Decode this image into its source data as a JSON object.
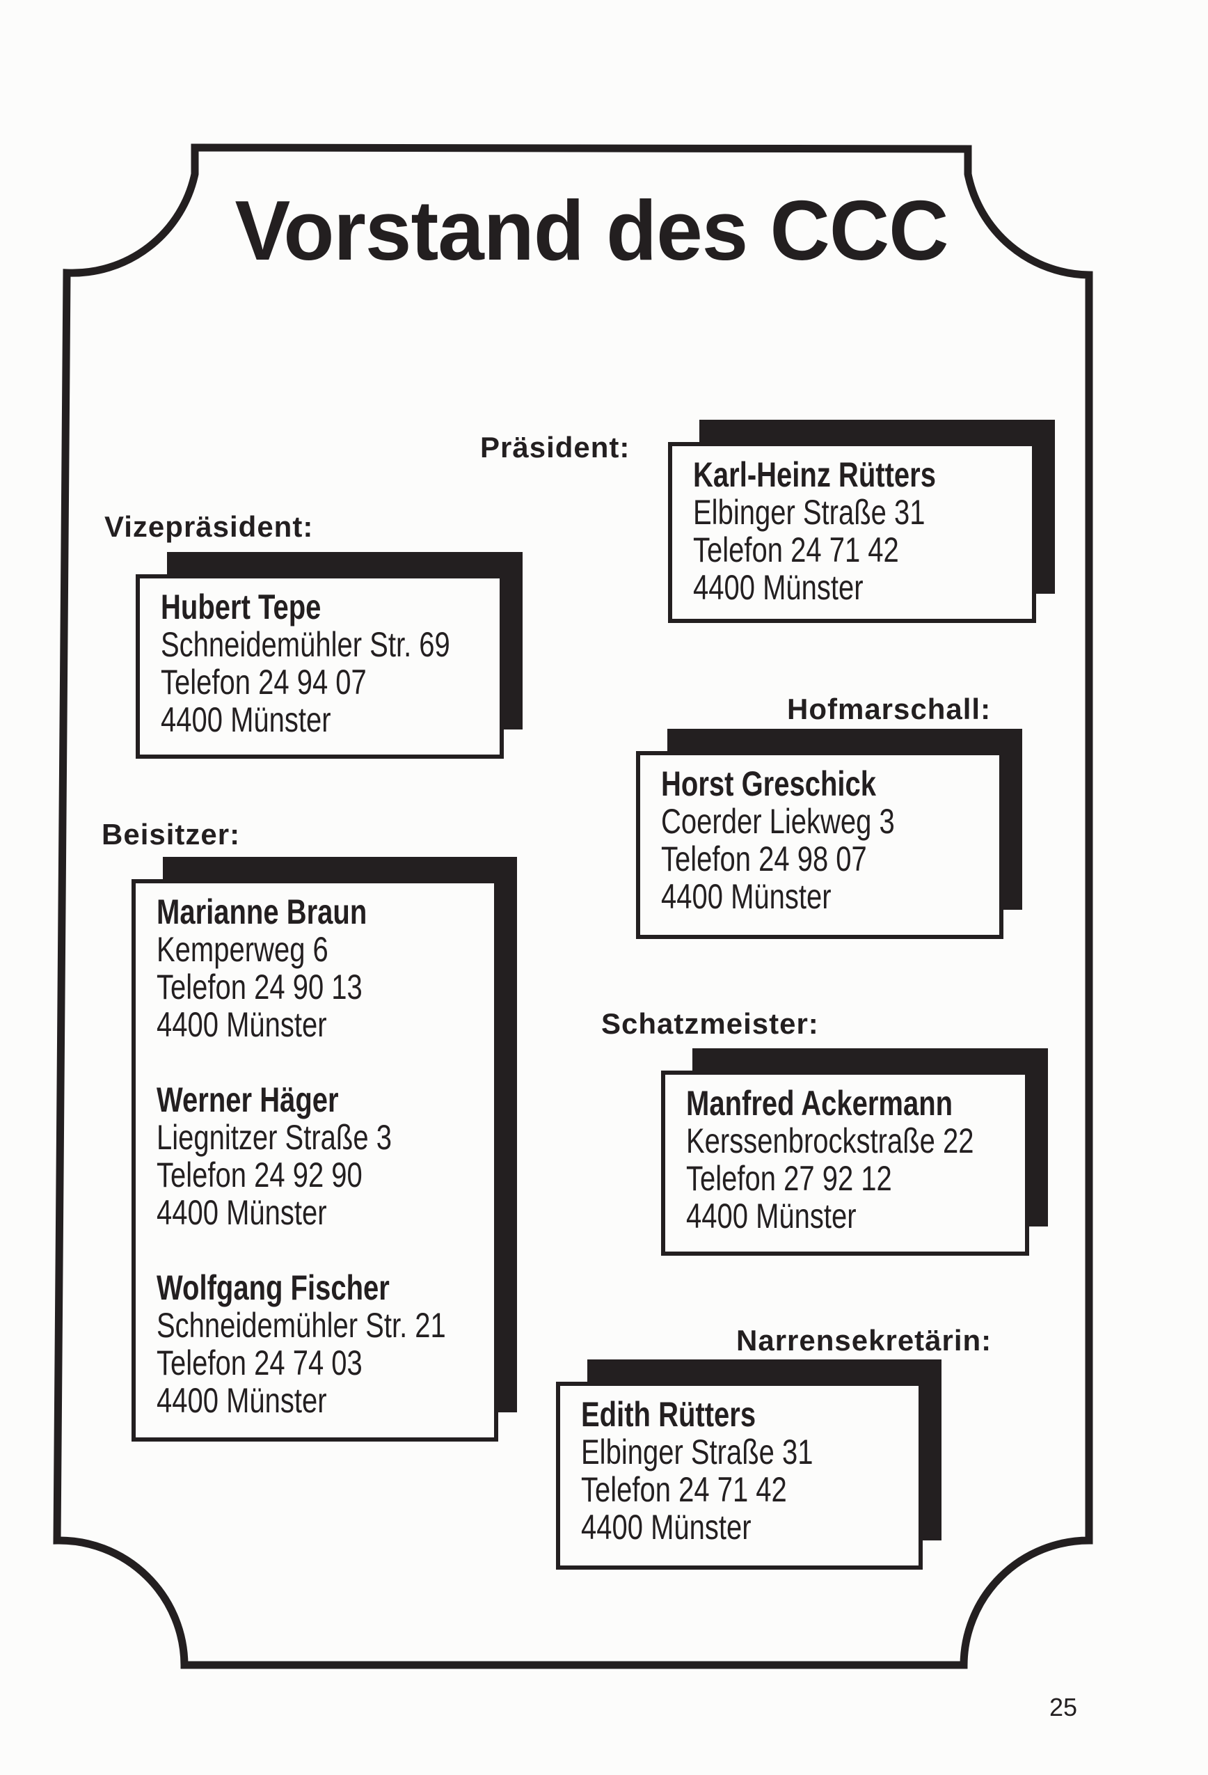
{
  "title": "Vorstand des CCC",
  "page_number": "25",
  "colors": {
    "ink": "#231f20",
    "paper": "#fcfcfb"
  },
  "praesident": {
    "label": "Präsident:",
    "name": "Karl-Heinz Rütters",
    "street": "Elbinger Straße 31",
    "phone": "Telefon 24 71 42",
    "city": "4400 Münster"
  },
  "vizepraesident": {
    "label": "Vizepräsident:",
    "name": "Hubert Tepe",
    "street": "Schneidemühler Str. 69",
    "phone": "Telefon 24 94 07",
    "city": "4400 Münster"
  },
  "hofmarschall": {
    "label": "Hofmarschall:",
    "name": "Horst Greschick",
    "street": "Coerder Liekweg 3",
    "phone": "Telefon 24 98 07",
    "city": "4400 Münster"
  },
  "beisitzer": {
    "label": "Beisitzer:",
    "members": [
      {
        "name": "Marianne Braun",
        "street": "Kemperweg 6",
        "phone": "Telefon 24 90 13",
        "city": "4400 Münster"
      },
      {
        "name": "Werner Häger",
        "street": "Liegnitzer Straße 3",
        "phone": "Telefon 24 92 90",
        "city": "4400 Münster"
      },
      {
        "name": "Wolfgang Fischer",
        "street": "Schneidemühler Str. 21",
        "phone": "Telefon 24 74 03",
        "city": "4400 Münster"
      }
    ]
  },
  "schatzmeister": {
    "label": "Schatzmeister:",
    "name": "Manfred Ackermann",
    "street": "Kerssenbrockstraße 22",
    "phone": "Telefon 27 92 12",
    "city": "4400 Münster"
  },
  "narrensekretaerin": {
    "label": "Narrensekretärin:",
    "name": "Edith Rütters",
    "street": "Elbinger Straße 31",
    "phone": "Telefon 24 71 42",
    "city": "4400 Münster"
  }
}
